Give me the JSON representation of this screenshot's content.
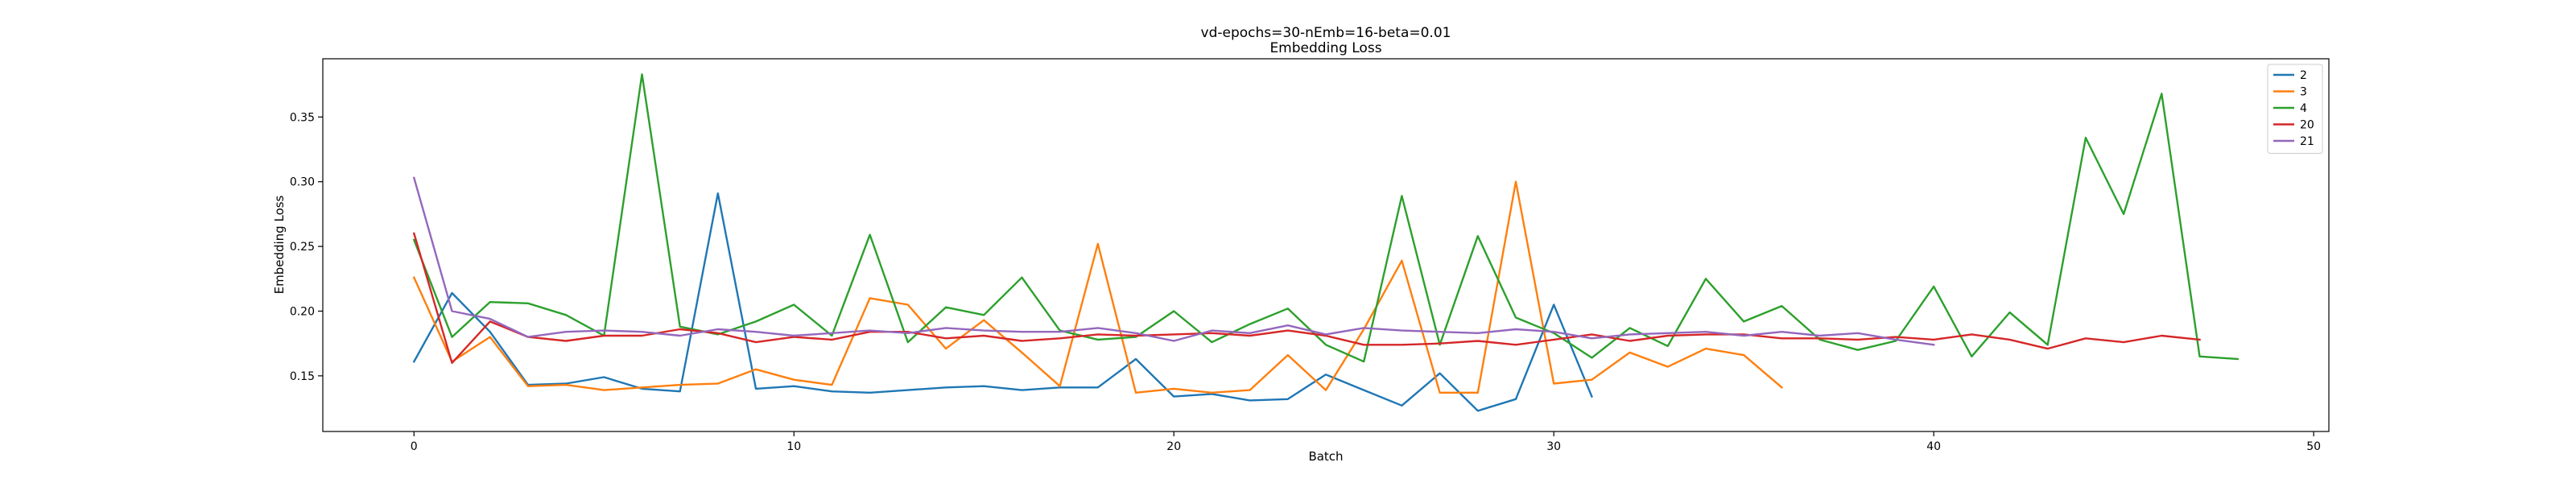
{
  "chart_data": {
    "type": "line",
    "title": "vd-epochs=30-nEmb=16-beta=0.01",
    "subtitle": "Embedding Loss",
    "xlabel": "Batch",
    "ylabel": "Embedding Loss",
    "xlim": [
      -2.4,
      50.4
    ],
    "ylim": [
      0.107,
      0.395
    ],
    "xticks": [
      0,
      10,
      20,
      30,
      40,
      50
    ],
    "yticks": [
      0.15,
      0.2,
      0.25,
      0.3,
      0.35
    ],
    "ytick_labels": [
      "0.15",
      "0.20",
      "0.25",
      "0.30",
      "0.35"
    ],
    "grid": false,
    "legend_position": "top-right",
    "series": [
      {
        "name": "2",
        "color": "#1f77b4",
        "values": [
          0.161,
          0.214,
          0.184,
          0.143,
          0.144,
          0.149,
          0.14,
          0.138,
          0.291,
          0.14,
          0.142,
          0.138,
          0.137,
          0.139,
          0.141,
          0.142,
          0.139,
          0.141,
          0.141,
          0.163,
          0.134,
          0.136,
          0.131,
          0.132,
          0.151,
          0.139,
          0.127,
          0.152,
          0.123,
          0.132,
          0.205,
          0.134
        ]
      },
      {
        "name": "3",
        "color": "#ff7f0e",
        "values": [
          0.226,
          0.161,
          0.18,
          0.142,
          0.143,
          0.139,
          0.141,
          0.143,
          0.144,
          0.155,
          0.147,
          0.143,
          0.21,
          0.205,
          0.171,
          0.193,
          0.168,
          0.142,
          0.252,
          0.137,
          0.14,
          0.137,
          0.139,
          0.166,
          0.139,
          0.186,
          0.239,
          0.137,
          0.137,
          0.3,
          0.144,
          0.147,
          0.168,
          0.157,
          0.171,
          0.166,
          0.141
        ]
      },
      {
        "name": "4",
        "color": "#2ca02c",
        "values": [
          0.255,
          0.18,
          0.207,
          0.206,
          0.197,
          0.181,
          0.383,
          0.188,
          0.182,
          0.192,
          0.205,
          0.181,
          0.259,
          0.176,
          0.203,
          0.197,
          0.226,
          0.185,
          0.178,
          0.18,
          0.2,
          0.176,
          0.19,
          0.202,
          0.174,
          0.161,
          0.289,
          0.174,
          0.258,
          0.195,
          0.183,
          0.164,
          0.187,
          0.173,
          0.225,
          0.192,
          0.204,
          0.178,
          0.17,
          0.177,
          0.219,
          0.165,
          0.199,
          0.174,
          0.334,
          0.275,
          0.368,
          0.165,
          0.163
        ]
      },
      {
        "name": "20",
        "color": "#d62728",
        "values": [
          0.26,
          0.16,
          0.192,
          0.18,
          0.177,
          0.181,
          0.181,
          0.186,
          0.183,
          0.176,
          0.18,
          0.178,
          0.184,
          0.184,
          0.179,
          0.181,
          0.177,
          0.179,
          0.182,
          0.181,
          0.182,
          0.183,
          0.181,
          0.185,
          0.181,
          0.174,
          0.174,
          0.175,
          0.177,
          0.174,
          0.178,
          0.182,
          0.177,
          0.181,
          0.182,
          0.182,
          0.179,
          0.179,
          0.178,
          0.18,
          0.178,
          0.182,
          0.178,
          0.171,
          0.179,
          0.176,
          0.181,
          0.178
        ]
      },
      {
        "name": "21",
        "color": "#9467bd",
        "values": [
          0.303,
          0.2,
          0.194,
          0.18,
          0.184,
          0.185,
          0.184,
          0.181,
          0.186,
          0.184,
          0.181,
          0.183,
          0.185,
          0.183,
          0.187,
          0.185,
          0.184,
          0.184,
          0.187,
          0.183,
          0.177,
          0.185,
          0.183,
          0.189,
          0.182,
          0.187,
          0.185,
          0.184,
          0.183,
          0.186,
          0.184,
          0.179,
          0.182,
          0.183,
          0.184,
          0.181,
          0.184,
          0.181,
          0.183,
          0.178,
          0.174
        ]
      }
    ]
  }
}
